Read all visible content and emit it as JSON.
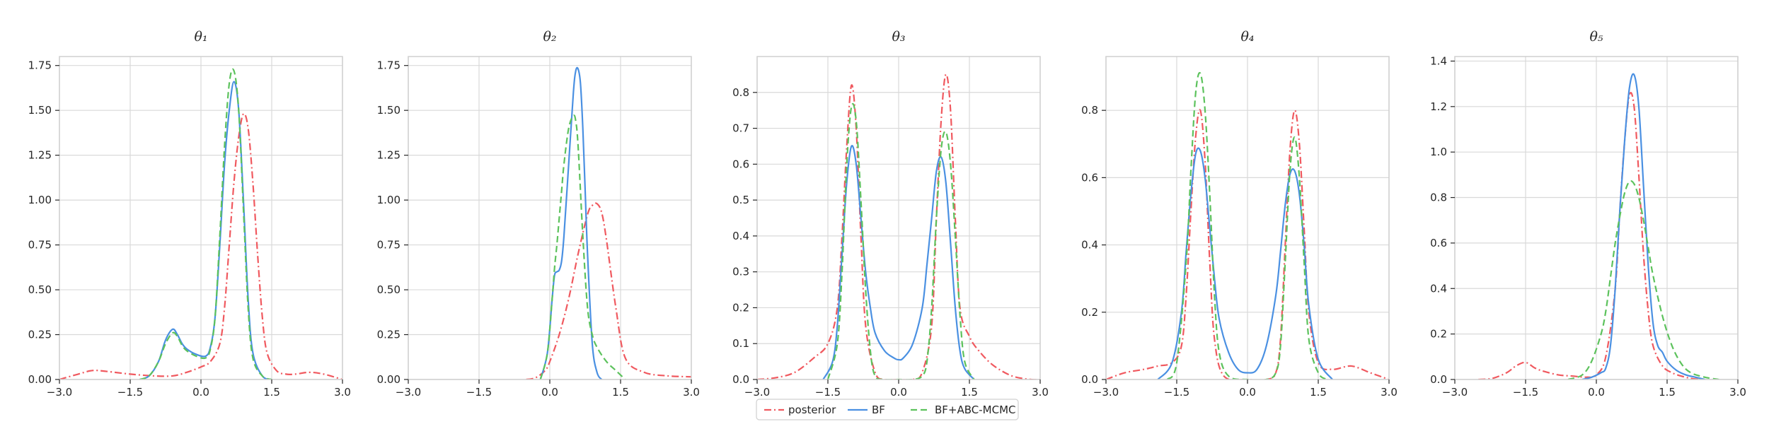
{
  "chart_data": {
    "type": "line",
    "grid": true,
    "legend_placement": "bottom-center",
    "series_styles": [
      {
        "name": "posterior",
        "color": "#f0595f",
        "dash": "dash-dot"
      },
      {
        "name": "BF",
        "color": "#4a90e2",
        "dash": "solid"
      },
      {
        "name": "BF+ABC-MCMC",
        "color": "#5cc25c",
        "dash": "dashed"
      }
    ],
    "panels": [
      {
        "title": "θ₁",
        "xlim": [
          -3.0,
          3.0
        ],
        "ylim": [
          0,
          1.8
        ],
        "xticks": [
          -3.0,
          -1.5,
          0.0,
          1.5,
          3.0
        ],
        "xtick_labels": [
          "−3.0",
          "−1.5",
          "0.0",
          "1.5",
          "3.0"
        ],
        "yticks": [
          0.0,
          0.25,
          0.5,
          0.75,
          1.0,
          1.25,
          1.5,
          1.75
        ],
        "ytick_labels": [
          "0.00",
          "0.25",
          "0.50",
          "0.75",
          "1.00",
          "1.25",
          "1.50",
          "1.75"
        ],
        "series": [
          {
            "name": "posterior",
            "x": [
              -3.0,
              -2.6,
              -2.3,
              -2.0,
              -1.5,
              -1.0,
              -0.6,
              -0.3,
              0.0,
              0.2,
              0.4,
              0.5,
              0.6,
              0.7,
              0.8,
              0.9,
              1.0,
              1.1,
              1.2,
              1.3,
              1.4,
              1.6,
              1.8,
              2.0,
              2.3,
              2.6,
              3.0
            ],
            "y": [
              0.0,
              0.03,
              0.05,
              0.045,
              0.03,
              0.02,
              0.02,
              0.04,
              0.07,
              0.1,
              0.2,
              0.4,
              0.75,
              1.1,
              1.35,
              1.48,
              1.4,
              1.1,
              0.7,
              0.35,
              0.15,
              0.05,
              0.03,
              0.03,
              0.04,
              0.03,
              0.0
            ]
          },
          {
            "name": "BF",
            "x": [
              -1.3,
              -1.1,
              -0.9,
              -0.75,
              -0.6,
              -0.5,
              -0.4,
              -0.3,
              -0.1,
              0.1,
              0.2,
              0.3,
              0.4,
              0.5,
              0.6,
              0.7,
              0.8,
              0.9,
              1.0,
              1.1,
              1.3,
              1.5
            ],
            "y": [
              0.0,
              0.02,
              0.1,
              0.22,
              0.28,
              0.25,
              0.2,
              0.17,
              0.14,
              0.13,
              0.18,
              0.35,
              0.75,
              1.2,
              1.5,
              1.66,
              1.5,
              1.0,
              0.45,
              0.15,
              0.02,
              0.0
            ]
          },
          {
            "name": "BF+ABC-MCMC",
            "x": [
              -1.3,
              -1.1,
              -0.9,
              -0.75,
              -0.6,
              -0.5,
              -0.4,
              -0.3,
              -0.1,
              0.1,
              0.2,
              0.3,
              0.4,
              0.5,
              0.6,
              0.7,
              0.8,
              0.9,
              1.0,
              1.1,
              1.3,
              1.5
            ],
            "y": [
              0.0,
              0.02,
              0.1,
              0.2,
              0.26,
              0.24,
              0.19,
              0.16,
              0.13,
              0.12,
              0.17,
              0.35,
              0.8,
              1.3,
              1.65,
              1.72,
              1.5,
              0.95,
              0.4,
              0.12,
              0.02,
              0.0
            ]
          }
        ]
      },
      {
        "title": "θ₂",
        "xlim": [
          -3.0,
          3.0
        ],
        "ylim": [
          0,
          1.8
        ],
        "xticks": [
          -3.0,
          -1.5,
          0.0,
          1.5,
          3.0
        ],
        "xtick_labels": [
          "−3.0",
          "−1.5",
          "0.0",
          "1.5",
          "3.0"
        ],
        "yticks": [
          0.0,
          0.25,
          0.5,
          0.75,
          1.0,
          1.25,
          1.5,
          1.75
        ],
        "ytick_labels": [
          "0.00",
          "0.25",
          "0.50",
          "0.75",
          "1.00",
          "1.25",
          "1.50",
          "1.75"
        ],
        "series": [
          {
            "name": "posterior",
            "x": [
              -0.5,
              -0.3,
              -0.1,
              0.0,
              0.2,
              0.4,
              0.6,
              0.8,
              0.9,
              1.0,
              1.1,
              1.2,
              1.4,
              1.6,
              2.0,
              2.5,
              3.0
            ],
            "y": [
              0.0,
              0.01,
              0.05,
              0.1,
              0.25,
              0.45,
              0.7,
              0.92,
              0.97,
              0.98,
              0.93,
              0.78,
              0.4,
              0.12,
              0.04,
              0.02,
              0.015
            ]
          },
          {
            "name": "BF",
            "x": [
              -0.2,
              -0.05,
              0.05,
              0.1,
              0.15,
              0.2,
              0.25,
              0.3,
              0.4,
              0.5,
              0.55,
              0.6,
              0.65,
              0.7,
              0.75,
              0.8,
              0.9,
              1.0,
              1.1
            ],
            "y": [
              0.0,
              0.15,
              0.45,
              0.58,
              0.6,
              0.61,
              0.66,
              0.8,
              1.2,
              1.6,
              1.72,
              1.73,
              1.65,
              1.4,
              1.05,
              0.7,
              0.2,
              0.04,
              0.0
            ]
          },
          {
            "name": "BF+ABC-MCMC",
            "x": [
              -0.2,
              -0.05,
              0.05,
              0.1,
              0.15,
              0.2,
              0.25,
              0.3,
              0.4,
              0.5,
              0.55,
              0.6,
              0.7,
              0.8,
              0.9,
              1.0,
              1.2,
              1.4,
              1.6
            ],
            "y": [
              0.0,
              0.15,
              0.45,
              0.62,
              0.75,
              0.9,
              1.05,
              1.2,
              1.4,
              1.47,
              1.44,
              1.3,
              0.8,
              0.4,
              0.25,
              0.18,
              0.1,
              0.05,
              0.0
            ]
          }
        ]
      },
      {
        "title": "θ₃",
        "xlim": [
          -3.0,
          3.0
        ],
        "ylim": [
          0,
          0.9
        ],
        "xticks": [
          -3.0,
          -1.5,
          0.0,
          1.5,
          3.0
        ],
        "xtick_labels": [
          "−3.0",
          "−1.5",
          "0.0",
          "1.5",
          "3.0"
        ],
        "yticks": [
          0.0,
          0.1,
          0.2,
          0.3,
          0.4,
          0.5,
          0.6,
          0.7,
          0.8
        ],
        "ytick_labels": [
          "0.0",
          "0.1",
          "0.2",
          "0.3",
          "0.4",
          "0.5",
          "0.6",
          "0.7",
          "0.8"
        ],
        "series": [
          {
            "name": "posterior",
            "x": [
              -3.0,
              -2.6,
              -2.2,
              -1.8,
              -1.5,
              -1.3,
              -1.2,
              -1.1,
              -1.0,
              -0.9,
              -0.8,
              -0.7,
              -0.5,
              -0.3,
              0.0,
              0.3,
              0.5,
              0.7,
              0.8,
              0.9,
              1.0,
              1.1,
              1.2,
              1.3,
              1.5,
              1.7,
              2.0,
              2.4,
              2.8,
              3.0
            ],
            "y": [
              0.0,
              0.005,
              0.02,
              0.06,
              0.1,
              0.2,
              0.4,
              0.65,
              0.82,
              0.7,
              0.4,
              0.15,
              0.02,
              0.0,
              0.0,
              0.0,
              0.02,
              0.15,
              0.45,
              0.72,
              0.85,
              0.75,
              0.45,
              0.2,
              0.12,
              0.08,
              0.04,
              0.01,
              0.0,
              0.0
            ]
          },
          {
            "name": "BF",
            "x": [
              -1.6,
              -1.4,
              -1.3,
              -1.2,
              -1.1,
              -1.0,
              -0.9,
              -0.8,
              -0.7,
              -0.6,
              -0.5,
              -0.3,
              -0.1,
              0.0,
              0.1,
              0.3,
              0.5,
              0.6,
              0.7,
              0.8,
              0.9,
              1.0,
              1.1,
              1.2,
              1.3,
              1.4,
              1.6
            ],
            "y": [
              0.0,
              0.05,
              0.15,
              0.35,
              0.55,
              0.65,
              0.6,
              0.45,
              0.3,
              0.2,
              0.13,
              0.08,
              0.06,
              0.055,
              0.06,
              0.1,
              0.2,
              0.32,
              0.45,
              0.58,
              0.62,
              0.55,
              0.38,
              0.2,
              0.08,
              0.03,
              0.0
            ]
          },
          {
            "name": "BF+ABC-MCMC",
            "x": [
              -1.5,
              -1.3,
              -1.2,
              -1.1,
              -1.0,
              -0.9,
              -0.8,
              -0.7,
              -0.6,
              -0.5,
              -0.3,
              0.0,
              0.3,
              0.5,
              0.6,
              0.7,
              0.8,
              0.9,
              1.0,
              1.1,
              1.2,
              1.3,
              1.4,
              1.6
            ],
            "y": [
              0.0,
              0.1,
              0.3,
              0.6,
              0.76,
              0.72,
              0.5,
              0.25,
              0.08,
              0.01,
              0.0,
              0.0,
              0.0,
              0.01,
              0.05,
              0.2,
              0.45,
              0.64,
              0.69,
              0.6,
              0.4,
              0.18,
              0.05,
              0.0
            ]
          }
        ]
      },
      {
        "title": "θ₄",
        "xlim": [
          -3.0,
          3.0
        ],
        "ylim": [
          0,
          0.96
        ],
        "xticks": [
          -3.0,
          -1.5,
          0.0,
          1.5,
          3.0
        ],
        "xtick_labels": [
          "−3.0",
          "−1.5",
          "0.0",
          "1.5",
          "3.0"
        ],
        "yticks": [
          0.0,
          0.2,
          0.4,
          0.6,
          0.8
        ],
        "ytick_labels": [
          "0.0",
          "0.2",
          "0.4",
          "0.6",
          "0.8"
        ],
        "series": [
          {
            "name": "posterior",
            "x": [
              -3.0,
              -2.6,
              -2.2,
              -1.9,
              -1.6,
              -1.4,
              -1.3,
              -1.2,
              -1.1,
              -1.0,
              -0.9,
              -0.8,
              -0.7,
              -0.5,
              0.0,
              0.4,
              0.6,
              0.7,
              0.8,
              0.9,
              1.0,
              1.1,
              1.2,
              1.3,
              1.5,
              1.8,
              2.2,
              2.6,
              3.0
            ],
            "y": [
              0.0,
              0.02,
              0.03,
              0.04,
              0.05,
              0.1,
              0.25,
              0.5,
              0.72,
              0.8,
              0.65,
              0.35,
              0.12,
              0.01,
              0.0,
              0.0,
              0.02,
              0.12,
              0.4,
              0.68,
              0.8,
              0.7,
              0.45,
              0.2,
              0.05,
              0.03,
              0.04,
              0.02,
              0.0
            ]
          },
          {
            "name": "BF",
            "x": [
              -1.9,
              -1.6,
              -1.4,
              -1.3,
              -1.2,
              -1.1,
              -1.0,
              -0.9,
              -0.8,
              -0.7,
              -0.6,
              -0.4,
              -0.2,
              0.0,
              0.2,
              0.4,
              0.6,
              0.7,
              0.8,
              0.9,
              1.0,
              1.1,
              1.2,
              1.3,
              1.5,
              1.8
            ],
            "y": [
              0.0,
              0.05,
              0.2,
              0.38,
              0.55,
              0.67,
              0.68,
              0.6,
              0.45,
              0.3,
              0.18,
              0.08,
              0.03,
              0.02,
              0.03,
              0.1,
              0.25,
              0.38,
              0.52,
              0.61,
              0.62,
              0.55,
              0.4,
              0.22,
              0.06,
              0.0
            ]
          },
          {
            "name": "BF+ABC-MCMC",
            "x": [
              -1.7,
              -1.5,
              -1.3,
              -1.2,
              -1.1,
              -1.0,
              -0.9,
              -0.8,
              -0.7,
              -0.6,
              -0.4,
              0.0,
              0.4,
              0.6,
              0.7,
              0.8,
              0.9,
              1.0,
              1.1,
              1.2,
              1.3,
              1.5,
              1.7
            ],
            "y": [
              0.0,
              0.05,
              0.35,
              0.62,
              0.85,
              0.91,
              0.8,
              0.55,
              0.25,
              0.08,
              0.01,
              0.0,
              0.0,
              0.02,
              0.1,
              0.35,
              0.62,
              0.72,
              0.6,
              0.35,
              0.12,
              0.02,
              0.0
            ]
          }
        ]
      },
      {
        "title": "θ₅",
        "xlim": [
          -3.0,
          3.0
        ],
        "ylim": [
          0,
          1.42
        ],
        "xticks": [
          -3.0,
          -1.5,
          0.0,
          1.5,
          3.0
        ],
        "xtick_labels": [
          "−3.0",
          "−1.5",
          "0.0",
          "1.5",
          "3.0"
        ],
        "yticks": [
          0.0,
          0.2,
          0.4,
          0.6,
          0.8,
          1.0,
          1.2,
          1.4
        ],
        "ytick_labels": [
          "0.0",
          "0.2",
          "0.4",
          "0.6",
          "0.8",
          "1.0",
          "1.2",
          "1.4"
        ],
        "series": [
          {
            "name": "posterior",
            "x": [
              -2.5,
              -2.2,
              -1.9,
              -1.7,
              -1.5,
              -1.3,
              -1.1,
              -0.8,
              -0.5,
              -0.2,
              0.0,
              0.2,
              0.4,
              0.5,
              0.6,
              0.7,
              0.8,
              0.9,
              1.0,
              1.1,
              1.2,
              1.4,
              1.6,
              1.8,
              2.0,
              2.2
            ],
            "y": [
              0.0,
              0.005,
              0.03,
              0.06,
              0.075,
              0.05,
              0.035,
              0.02,
              0.015,
              0.01,
              0.02,
              0.1,
              0.4,
              0.75,
              1.05,
              1.25,
              1.2,
              0.9,
              0.55,
              0.3,
              0.15,
              0.06,
              0.03,
              0.015,
              0.005,
              0.0
            ]
          },
          {
            "name": "BF",
            "x": [
              -0.3,
              -0.1,
              0.1,
              0.2,
              0.3,
              0.4,
              0.5,
              0.6,
              0.7,
              0.8,
              0.9,
              1.0,
              1.1,
              1.2,
              1.3,
              1.4,
              1.5,
              1.7,
              1.9,
              2.1,
              2.3
            ],
            "y": [
              0.0,
              0.01,
              0.03,
              0.05,
              0.15,
              0.4,
              0.75,
              1.05,
              1.28,
              1.34,
              1.2,
              0.85,
              0.5,
              0.25,
              0.15,
              0.12,
              0.08,
              0.04,
              0.02,
              0.01,
              0.0
            ]
          },
          {
            "name": "BF+ABC-MCMC",
            "x": [
              -0.6,
              -0.3,
              -0.1,
              0.1,
              0.2,
              0.3,
              0.4,
              0.5,
              0.6,
              0.7,
              0.8,
              0.9,
              1.0,
              1.1,
              1.2,
              1.4,
              1.6,
              1.8,
              2.0,
              2.3,
              2.6
            ],
            "y": [
              0.0,
              0.02,
              0.08,
              0.2,
              0.3,
              0.45,
              0.6,
              0.72,
              0.82,
              0.87,
              0.86,
              0.8,
              0.7,
              0.58,
              0.46,
              0.28,
              0.15,
              0.07,
              0.03,
              0.01,
              0.0
            ]
          }
        ]
      }
    ],
    "legend": [
      "posterior",
      "BF",
      "BF+ABC-MCMC"
    ]
  }
}
